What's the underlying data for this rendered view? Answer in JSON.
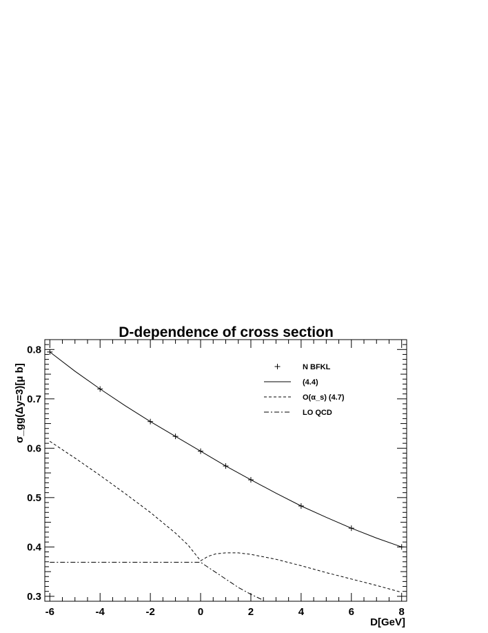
{
  "chart_data": {
    "type": "line",
    "title": "D-dependence of cross section",
    "xlabel": "D[GeV]",
    "ylabel": "σ_gg(Δy=3)[μ b]",
    "xlim": [
      -6.2,
      8.2
    ],
    "ylim": [
      0.29,
      0.82
    ],
    "xticks": [
      -6,
      -4,
      -2,
      0,
      2,
      4,
      6,
      8
    ],
    "yticks": [
      0.3,
      0.4,
      0.5,
      0.6,
      0.7,
      0.8
    ],
    "grid": false,
    "legend_position": "top-right",
    "series": [
      {
        "name": "N BFKL",
        "style": "markers",
        "marker": "plus",
        "x": [
          -6,
          -4,
          -2,
          -1,
          0,
          1,
          2,
          4,
          6,
          8
        ],
        "y": [
          0.795,
          0.72,
          0.654,
          0.624,
          0.594,
          0.564,
          0.536,
          0.483,
          0.438,
          0.4
        ]
      },
      {
        "name": "(4.4)",
        "style": "solid",
        "x": [
          -6,
          -5,
          -4,
          -3,
          -2,
          -1,
          0,
          1,
          2,
          3,
          4,
          5,
          6,
          7,
          8
        ],
        "y": [
          0.795,
          0.756,
          0.72,
          0.686,
          0.654,
          0.624,
          0.594,
          0.564,
          0.536,
          0.509,
          0.483,
          0.46,
          0.438,
          0.418,
          0.4
        ]
      },
      {
        "name": "O(α_s) (4.7)",
        "style": "dashed",
        "x": [
          -6,
          -5,
          -4,
          -3,
          -2,
          -1,
          -0.5,
          0,
          0.3,
          0.6,
          1,
          1.5,
          2,
          3,
          4,
          5,
          6,
          7,
          8
        ],
        "y": [
          0.614,
          0.58,
          0.545,
          0.508,
          0.47,
          0.428,
          0.404,
          0.372,
          0.381,
          0.386,
          0.388,
          0.388,
          0.385,
          0.375,
          0.362,
          0.348,
          0.335,
          0.322,
          0.308
        ]
      },
      {
        "name": "LO QCD",
        "style": "dashdot",
        "x": [
          -6,
          -4,
          -2,
          -1,
          0,
          0.5,
          1,
          1.5,
          2,
          2.5
        ],
        "y": [
          0.369,
          0.369,
          0.369,
          0.369,
          0.369,
          0.352,
          0.335,
          0.318,
          0.304,
          0.292
        ]
      }
    ]
  }
}
